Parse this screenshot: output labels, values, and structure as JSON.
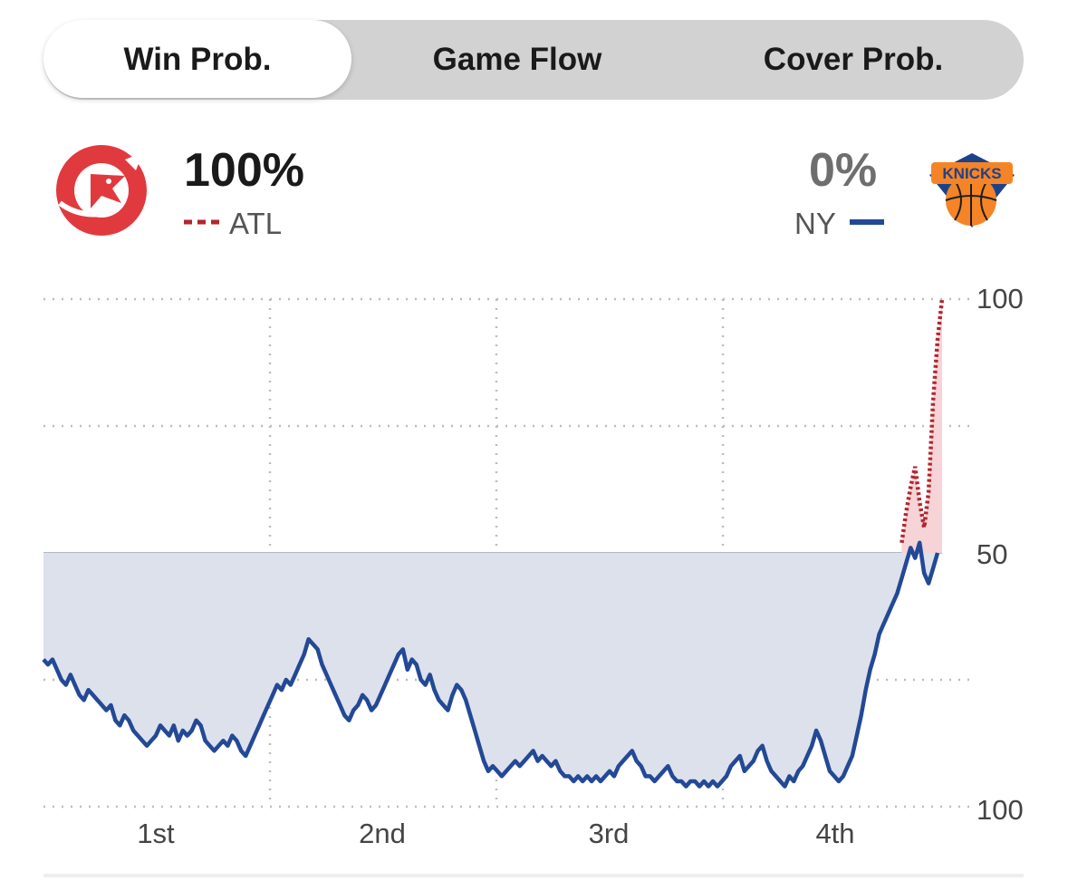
{
  "tabs": [
    {
      "label": "Win Prob.",
      "active": true
    },
    {
      "label": "Game Flow",
      "active": false
    },
    {
      "label": "Cover Prob.",
      "active": false
    }
  ],
  "teams": {
    "home": {
      "abbr": "ATL",
      "pct": "100%",
      "color": "#b3242f",
      "logo": "hawks-logo"
    },
    "away": {
      "abbr": "NY",
      "pct": "0%",
      "color": "#234996",
      "logo": "knicks-logo"
    }
  },
  "chart_data": {
    "type": "area",
    "x_categories": [
      "1st",
      "2nd",
      "3rd",
      "4th"
    ],
    "y_tick_labels": [
      "100",
      "50",
      "100"
    ],
    "ylim": [
      0,
      100
    ],
    "midline": 50,
    "grid": "dotted",
    "series": [
      {
        "name": "NY",
        "color": "#234996",
        "style": "solid",
        "x": [
          0,
          1,
          2,
          3,
          4,
          5,
          6,
          7,
          8,
          9,
          10,
          11,
          12,
          13,
          14,
          15,
          16,
          17,
          18,
          19,
          20,
          21,
          22,
          23,
          24,
          25,
          26,
          27,
          28,
          29,
          30,
          31,
          32,
          33,
          34,
          35,
          36,
          37,
          38,
          39,
          40,
          41,
          42,
          43,
          44,
          45,
          46,
          47,
          48,
          49,
          50,
          51,
          52,
          53,
          54,
          55,
          56,
          57,
          58,
          59,
          60,
          61,
          62,
          63,
          64,
          65,
          66,
          67,
          68,
          69,
          70,
          71,
          72,
          73,
          74,
          75,
          76,
          77,
          78,
          79,
          80,
          81,
          82,
          83,
          84,
          85,
          86,
          87,
          88,
          89,
          90,
          91,
          92,
          93,
          94,
          95,
          96,
          97,
          98,
          99,
          100,
          101,
          102,
          103,
          104,
          105,
          106,
          107,
          108,
          109,
          110,
          111,
          112,
          113,
          114,
          115,
          116,
          117,
          118,
          119,
          120,
          121,
          122,
          123,
          124,
          125,
          126,
          127,
          128,
          129,
          130,
          131,
          132,
          133,
          134,
          135,
          136,
          137,
          138,
          139,
          140,
          141,
          142,
          143,
          144,
          145,
          146,
          147,
          148,
          149,
          150,
          151,
          152,
          153,
          154,
          155,
          156,
          157,
          158,
          159,
          160,
          161,
          162,
          163,
          164,
          165,
          166,
          167,
          168,
          169,
          170,
          171,
          172,
          173,
          174,
          175,
          176,
          177,
          178,
          179,
          180,
          181,
          182,
          183,
          184,
          185,
          186,
          187,
          188,
          189,
          190,
          191,
          192,
          193,
          194,
          195,
          196,
          197,
          198,
          199
        ],
        "values": [
          29,
          28,
          29,
          27,
          25,
          24,
          26,
          24,
          22,
          21,
          23,
          22,
          21,
          20,
          19,
          20,
          17,
          16,
          18,
          17,
          15,
          14,
          13,
          12,
          13,
          14,
          16,
          15,
          14,
          16,
          13,
          15,
          14,
          15,
          17,
          16,
          13,
          12,
          11,
          12,
          13,
          12,
          14,
          13,
          11,
          10,
          12,
          14,
          16,
          18,
          20,
          22,
          24,
          23,
          25,
          24,
          26,
          28,
          30,
          33,
          32,
          31,
          28,
          26,
          24,
          22,
          20,
          18,
          17,
          19,
          20,
          22,
          21,
          19,
          20,
          22,
          24,
          26,
          28,
          30,
          31,
          27,
          29,
          28,
          25,
          24,
          26,
          23,
          21,
          20,
          19,
          22,
          24,
          23,
          21,
          18,
          15,
          12,
          9,
          7,
          8,
          7,
          6,
          7,
          8,
          9,
          8,
          9,
          10,
          11,
          9,
          10,
          9,
          8,
          9,
          7,
          6,
          6,
          5,
          6,
          5,
          6,
          5,
          6,
          5,
          6,
          7,
          6,
          8,
          9,
          10,
          11,
          9,
          8,
          6,
          6,
          5,
          6,
          7,
          8,
          6,
          5,
          5,
          4,
          5,
          5,
          4,
          5,
          4,
          5,
          4,
          5,
          6,
          8,
          9,
          10,
          7,
          8,
          9,
          11,
          12,
          9,
          7,
          6,
          5,
          4,
          6,
          5,
          7,
          8,
          10,
          12,
          15,
          13,
          10,
          7,
          6,
          5,
          6,
          8,
          10,
          14,
          18,
          23,
          27,
          30,
          34,
          36,
          38,
          40,
          42,
          45,
          48,
          51,
          49,
          52,
          46,
          44,
          47,
          50
        ]
      },
      {
        "name": "ATL",
        "color": "#b3242f",
        "style": "dashed",
        "x": [
          191,
          192,
          193,
          194,
          195,
          196,
          197,
          198,
          199,
          200
        ],
        "values": [
          52,
          58,
          63,
          67,
          60,
          55,
          62,
          80,
          92,
          100
        ]
      }
    ]
  }
}
